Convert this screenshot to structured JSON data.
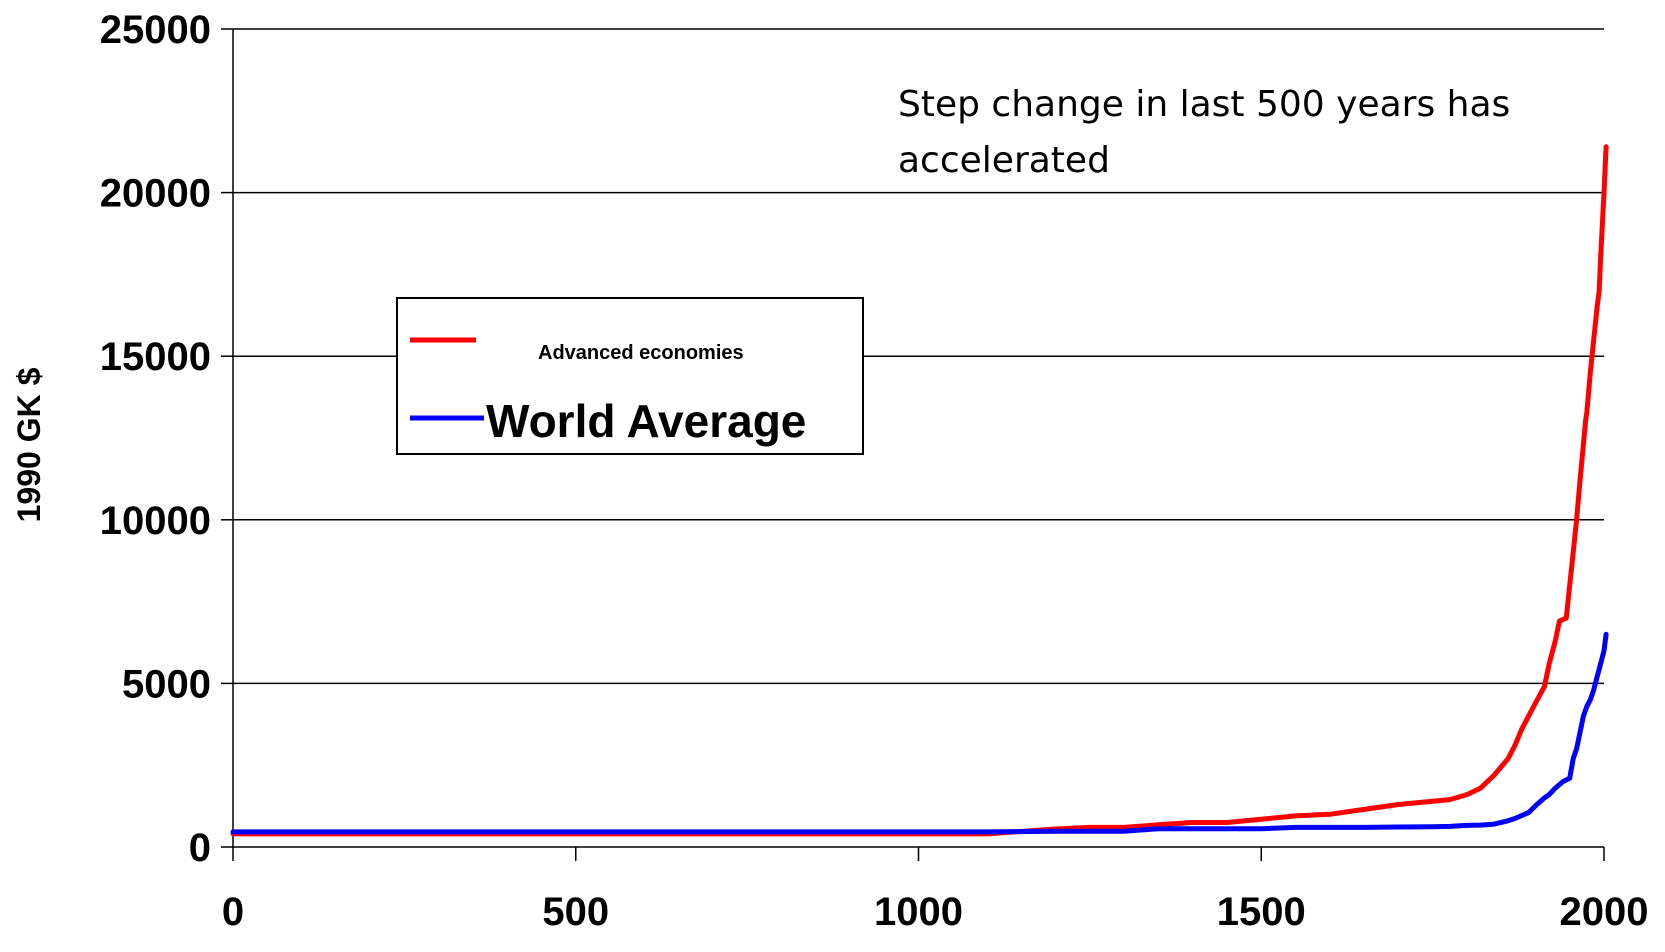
{
  "chart_data": {
    "type": "line",
    "title": "",
    "xlabel": "",
    "ylabel": "1990 GK $",
    "xlim": [
      0,
      2000
    ],
    "ylim": [
      0,
      25000
    ],
    "x_ticks": [
      0,
      500,
      1000,
      1500,
      2000
    ],
    "y_ticks": [
      0,
      5000,
      10000,
      15000,
      20000,
      25000
    ],
    "grid": "horizontal",
    "legend_position": "upper-left",
    "annotation": {
      "line1": "Step change in last 500 years has",
      "line2": "accelerated"
    },
    "series": [
      {
        "name": "Advanced economies",
        "color": "#ff0000",
        "points": [
          [
            0,
            400
          ],
          [
            1000,
            400
          ],
          [
            1100,
            400
          ],
          [
            1200,
            550
          ],
          [
            1250,
            600
          ],
          [
            1300,
            600
          ],
          [
            1350,
            680
          ],
          [
            1400,
            750
          ],
          [
            1450,
            750
          ],
          [
            1500,
            850
          ],
          [
            1550,
            950
          ],
          [
            1600,
            1000
          ],
          [
            1650,
            1150
          ],
          [
            1700,
            1300
          ],
          [
            1750,
            1400
          ],
          [
            1775,
            1450
          ],
          [
            1800,
            1600
          ],
          [
            1820,
            1800
          ],
          [
            1840,
            2200
          ],
          [
            1860,
            2700
          ],
          [
            1870,
            3100
          ],
          [
            1880,
            3600
          ],
          [
            1890,
            4000
          ],
          [
            1900,
            4400
          ],
          [
            1913,
            4900
          ],
          [
            1920,
            5600
          ],
          [
            1929,
            6300
          ],
          [
            1935,
            6900
          ],
          [
            1945,
            7000
          ],
          [
            1950,
            8000
          ],
          [
            1955,
            9000
          ],
          [
            1960,
            10000
          ],
          [
            1965,
            11200
          ],
          [
            1970,
            12300
          ],
          [
            1973,
            13000
          ],
          [
            1975,
            13300
          ],
          [
            1980,
            14500
          ],
          [
            1985,
            15500
          ],
          [
            1990,
            16500
          ],
          [
            1993,
            17000
          ],
          [
            1995,
            18000
          ],
          [
            2000,
            20000
          ],
          [
            2003,
            21400
          ]
        ]
      },
      {
        "name": "World Average",
        "color": "#0000ff",
        "points": [
          [
            0,
            460
          ],
          [
            1000,
            460
          ],
          [
            1100,
            460
          ],
          [
            1200,
            480
          ],
          [
            1300,
            480
          ],
          [
            1350,
            560
          ],
          [
            1400,
            560
          ],
          [
            1450,
            560
          ],
          [
            1500,
            560
          ],
          [
            1550,
            600
          ],
          [
            1600,
            600
          ],
          [
            1650,
            600
          ],
          [
            1700,
            610
          ],
          [
            1750,
            620
          ],
          [
            1775,
            630
          ],
          [
            1800,
            660
          ],
          [
            1820,
            670
          ],
          [
            1840,
            700
          ],
          [
            1860,
            800
          ],
          [
            1870,
            870
          ],
          [
            1890,
            1050
          ],
          [
            1900,
            1260
          ],
          [
            1913,
            1500
          ],
          [
            1920,
            1600
          ],
          [
            1929,
            1800
          ],
          [
            1940,
            2000
          ],
          [
            1950,
            2100
          ],
          [
            1955,
            2700
          ],
          [
            1960,
            3000
          ],
          [
            1965,
            3500
          ],
          [
            1970,
            4000
          ],
          [
            1975,
            4300
          ],
          [
            1980,
            4500
          ],
          [
            1985,
            4800
          ],
          [
            1990,
            5200
          ],
          [
            1995,
            5600
          ],
          [
            2000,
            6000
          ],
          [
            2003,
            6500
          ]
        ]
      }
    ]
  }
}
